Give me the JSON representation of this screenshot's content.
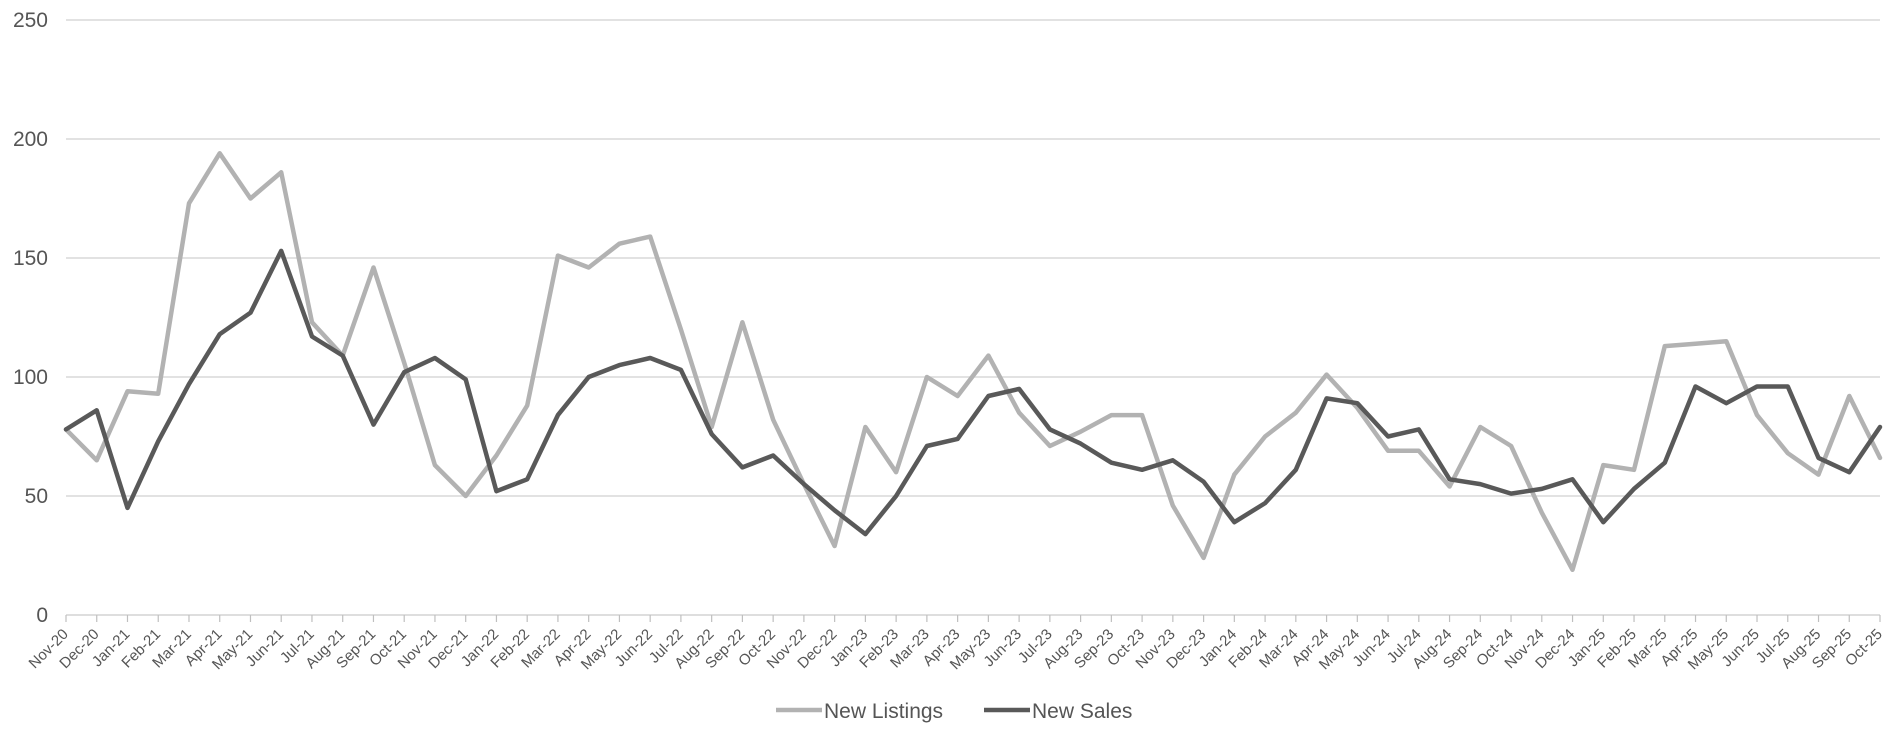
{
  "chart_data": {
    "type": "line",
    "title": "",
    "xlabel": "",
    "ylabel": "",
    "ylim": [
      0,
      250
    ],
    "yticks": [
      0,
      50,
      100,
      150,
      200,
      250
    ],
    "grid": "horizontal",
    "legend_position": "bottom-center",
    "categories": [
      "Nov-20",
      "Dec-20",
      "Jan-21",
      "Feb-21",
      "Mar-21",
      "Apr-21",
      "May-21",
      "Jun-21",
      "Jul-21",
      "Aug-21",
      "Sep-21",
      "Oct-21",
      "Nov-21",
      "Dec-21",
      "Jan-22",
      "Feb-22",
      "Mar-22",
      "Apr-22",
      "May-22",
      "Jun-22",
      "Jul-22",
      "Aug-22",
      "Sep-22",
      "Oct-22",
      "Nov-22",
      "Dec-22",
      "Jan-23",
      "Feb-23",
      "Mar-23",
      "Apr-23",
      "May-23",
      "Jun-23",
      "Jul-23",
      "Aug-23",
      "Sep-23",
      "Oct-23",
      "Nov-23",
      "Dec-23",
      "Jan-24",
      "Feb-24",
      "Mar-24",
      "Apr-24",
      "May-24",
      "Jun-24",
      "Jul-24",
      "Aug-24",
      "Sep-24",
      "Oct-24",
      "Nov-24",
      "Dec-24",
      "Jan-25",
      "Feb-25",
      "Mar-25",
      "Apr-25",
      "May-25",
      "Jun-25",
      "Jul-25",
      "Aug-25",
      "Sep-25",
      "Oct-25"
    ],
    "series": [
      {
        "name": "New Listings",
        "color": "#b2b2b2",
        "values": [
          78,
          65,
          94,
          93,
          173,
          194,
          175,
          186,
          123,
          109,
          146,
          106,
          63,
          50,
          67,
          88,
          151,
          146,
          156,
          159,
          120,
          79,
          123,
          82,
          55,
          29,
          79,
          60,
          100,
          92,
          109,
          85,
          71,
          77,
          84,
          84,
          46,
          24,
          59,
          75,
          85,
          101,
          87,
          69,
          69,
          54,
          79,
          71,
          43,
          19,
          63,
          61,
          113,
          114,
          115,
          84,
          68,
          59,
          92,
          66
        ]
      },
      {
        "name": "New Sales",
        "color": "#595959",
        "values": [
          78,
          86,
          45,
          73,
          97,
          118,
          127,
          153,
          117,
          109,
          80,
          102,
          108,
          99,
          52,
          57,
          84,
          100,
          105,
          108,
          103,
          76,
          62,
          67,
          55,
          44,
          34,
          50,
          71,
          74,
          92,
          95,
          78,
          72,
          64,
          61,
          65,
          56,
          39,
          47,
          61,
          91,
          89,
          75,
          78,
          57,
          55,
          51,
          53,
          57,
          39,
          53,
          64,
          96,
          89,
          96,
          96,
          66,
          60,
          79
        ]
      }
    ]
  }
}
